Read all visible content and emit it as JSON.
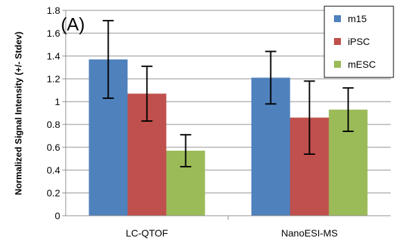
{
  "chart_data": {
    "type": "bar",
    "panel_label": "(A)",
    "ylabel": "Normalized Signal Intensity (+/- Stdev)",
    "xlabel": "",
    "ylim": [
      0,
      1.8
    ],
    "yticks": [
      0,
      0.2,
      0.4,
      0.6,
      0.8,
      1,
      1.2,
      1.4,
      1.6,
      1.8
    ],
    "ytick_labels": [
      "0",
      "0.2",
      "0.4",
      "0.6",
      "0.8",
      "1",
      "1.2",
      "1.4",
      "1.6",
      "1.8"
    ],
    "categories": [
      "LC-QTOF",
      "NanoESI-MS"
    ],
    "series": [
      {
        "name": "m15",
        "color": "#4F81BD",
        "values": [
          1.37,
          1.21
        ],
        "errors": [
          0.34,
          0.23
        ]
      },
      {
        "name": "iPSC",
        "color": "#C0504D",
        "values": [
          1.07,
          0.86
        ],
        "errors": [
          0.24,
          0.32
        ]
      },
      {
        "name": "mESC",
        "color": "#9BBB59",
        "values": [
          0.57,
          0.93
        ],
        "errors": [
          0.14,
          0.19
        ]
      }
    ],
    "grid": true,
    "legend_position": "top-right"
  }
}
